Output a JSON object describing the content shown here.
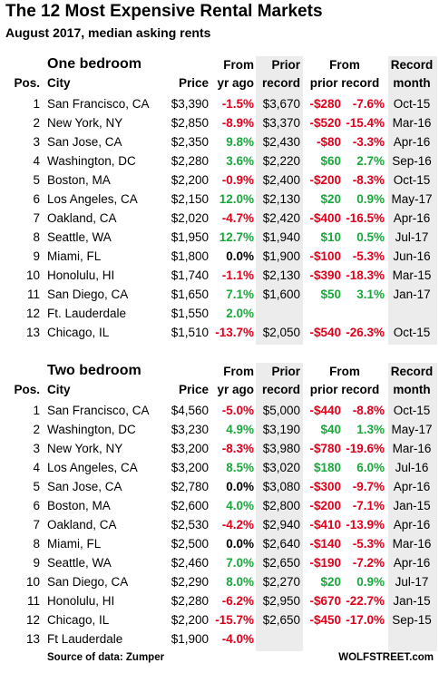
{
  "header": {
    "title": "The 12 Most Expensive Rental Markets",
    "subtitle": "August 2017, median asking rents"
  },
  "columns": {
    "pos": "Pos.",
    "city": "City",
    "price": "Price",
    "from_top": "From",
    "from_bottom": "yr ago",
    "prior_top": "Prior",
    "prior_bottom": "record",
    "from_prior_top": "From",
    "from_prior_bottom": "prior record",
    "record_top": "Record",
    "record_bottom": "month"
  },
  "sections": [
    {
      "title": "One bedroom",
      "rows": [
        {
          "pos": "1",
          "city": "San Francisco, CA",
          "price": "$3,390",
          "yoy": "-1.5%",
          "prior": "$3,670",
          "diff": "-$280",
          "diff_pct": "-7.6%",
          "month": "Oct-15"
        },
        {
          "pos": "2",
          "city": "New York, NY",
          "price": "$2,850",
          "yoy": "-8.9%",
          "prior": "$3,370",
          "diff": "-$520",
          "diff_pct": "-15.4%",
          "month": "Mar-16"
        },
        {
          "pos": "3",
          "city": "San Jose, CA",
          "price": "$2,350",
          "yoy": "9.8%",
          "prior": "$2,430",
          "diff": "-$80",
          "diff_pct": "-3.3%",
          "month": "Apr-16"
        },
        {
          "pos": "4",
          "city": "Washington, DC",
          "price": "$2,280",
          "yoy": "3.6%",
          "prior": "$2,220",
          "diff": "$60",
          "diff_pct": "2.7%",
          "month": "Sep-16"
        },
        {
          "pos": "5",
          "city": "Boston, MA",
          "price": "$2,200",
          "yoy": "-0.9%",
          "prior": "$2,400",
          "diff": "-$200",
          "diff_pct": "-8.3%",
          "month": "Oct-15"
        },
        {
          "pos": "6",
          "city": "Los Angeles, CA",
          "price": "$2,150",
          "yoy": "12.0%",
          "prior": "$2,130",
          "diff": "$20",
          "diff_pct": "0.9%",
          "month": "May-17"
        },
        {
          "pos": "7",
          "city": "Oakland, CA",
          "price": "$2,020",
          "yoy": "-4.7%",
          "prior": "$2,420",
          "diff": "-$400",
          "diff_pct": "-16.5%",
          "month": "Apr-16"
        },
        {
          "pos": "8",
          "city": "Seattle, WA",
          "price": "$1,950",
          "yoy": "12.7%",
          "prior": "$1,940",
          "diff": "$10",
          "diff_pct": "0.5%",
          "month": "Jul-17"
        },
        {
          "pos": "9",
          "city": "Miami, FL",
          "price": "$1,800",
          "yoy": "0.0%",
          "prior": "$1,900",
          "diff": "-$100",
          "diff_pct": "-5.3%",
          "month": "Jun-16"
        },
        {
          "pos": "10",
          "city": "Honolulu, HI",
          "price": "$1,740",
          "yoy": "-1.1%",
          "prior": "$2,130",
          "diff": "-$390",
          "diff_pct": "-18.3%",
          "month": "Mar-15"
        },
        {
          "pos": "11",
          "city": "San Diego, CA",
          "price": "$1,650",
          "yoy": "7.1%",
          "prior": "$1,600",
          "diff": "$50",
          "diff_pct": "3.1%",
          "month": "Jan-17"
        },
        {
          "pos": "12",
          "city": "Ft. Lauderdale",
          "price": "$1,550",
          "yoy": "2.0%",
          "prior": "",
          "diff": "",
          "diff_pct": "",
          "month": ""
        },
        {
          "pos": "13",
          "city": "Chicago, IL",
          "price": "$1,510",
          "yoy": "-13.7%",
          "prior": "$2,050",
          "diff": "-$540",
          "diff_pct": "-26.3%",
          "month": "Oct-15"
        }
      ]
    },
    {
      "title": "Two bedroom",
      "rows": [
        {
          "pos": "1",
          "city": "San Francisco, CA",
          "price": "$4,560",
          "yoy": "-5.0%",
          "prior": "$5,000",
          "diff": "-$440",
          "diff_pct": "-8.8%",
          "month": "Oct-15"
        },
        {
          "pos": "2",
          "city": "Washington, DC",
          "price": "$3,230",
          "yoy": "4.9%",
          "prior": "$3,190",
          "diff": "$40",
          "diff_pct": "1.3%",
          "month": "May-17"
        },
        {
          "pos": "3",
          "city": "New York, NY",
          "price": "$3,200",
          "yoy": "-8.3%",
          "prior": "$3,980",
          "diff": "-$780",
          "diff_pct": "-19.6%",
          "month": "Mar-16"
        },
        {
          "pos": "4",
          "city": "Los Angeles, CA",
          "price": "$3,200",
          "yoy": "8.5%",
          "prior": "$3,020",
          "diff": "$180",
          "diff_pct": "6.0%",
          "month": "Jul-16"
        },
        {
          "pos": "5",
          "city": "San Jose, CA",
          "price": "$2,780",
          "yoy": "0.0%",
          "prior": "$3,080",
          "diff": "-$300",
          "diff_pct": "-9.7%",
          "month": "Apr-16"
        },
        {
          "pos": "6",
          "city": "Boston, MA",
          "price": "$2,600",
          "yoy": "4.0%",
          "prior": "$2,800",
          "diff": "-$200",
          "diff_pct": "-7.1%",
          "month": "Jan-15"
        },
        {
          "pos": "7",
          "city": "Oakland, CA",
          "price": "$2,530",
          "yoy": "-4.2%",
          "prior": "$2,940",
          "diff": "-$410",
          "diff_pct": "-13.9%",
          "month": "Apr-16"
        },
        {
          "pos": "8",
          "city": "Miami, FL",
          "price": "$2,500",
          "yoy": "0.0%",
          "prior": "$2,640",
          "diff": "-$140",
          "diff_pct": "-5.3%",
          "month": "Mar-16"
        },
        {
          "pos": "9",
          "city": "Seattle, WA",
          "price": "$2,460",
          "yoy": "7.0%",
          "prior": "$2,650",
          "diff": "-$190",
          "diff_pct": "-7.2%",
          "month": "Apr-16"
        },
        {
          "pos": "10",
          "city": "San Diego, CA",
          "price": "$2,290",
          "yoy": "8.0%",
          "prior": "$2,270",
          "diff": "$20",
          "diff_pct": "0.9%",
          "month": "Jul-17"
        },
        {
          "pos": "11",
          "city": "Honolulu, HI",
          "price": "$2,280",
          "yoy": "-6.2%",
          "prior": "$2,950",
          "diff": "-$670",
          "diff_pct": "-22.7%",
          "month": "Jan-15"
        },
        {
          "pos": "12",
          "city": "Chicago, IL",
          "price": "$2,200",
          "yoy": "-15.7%",
          "prior": "$2,650",
          "diff": "-$450",
          "diff_pct": "-17.0%",
          "month": "Sep-15"
        },
        {
          "pos": "13",
          "city": "Ft Lauderdale",
          "price": "$1,900",
          "yoy": "-4.0%",
          "prior": "",
          "diff": "",
          "diff_pct": "",
          "month": ""
        }
      ]
    }
  ],
  "footer": {
    "source": "Source of data: Zumper",
    "brand": "WOLFSTREET.com"
  },
  "colors": {
    "negative": "#e0001b",
    "positive": "#1aa83c",
    "shade": "#ececec"
  }
}
